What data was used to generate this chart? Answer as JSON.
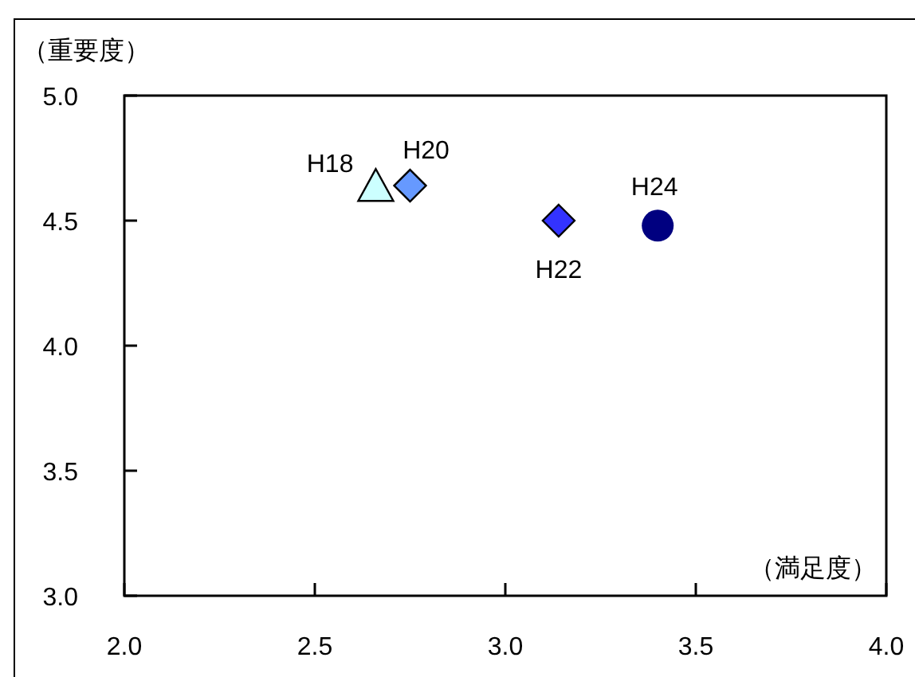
{
  "chart_data": {
    "type": "scatter",
    "xlabel": "（満足度）",
    "ylabel": "（重要度）",
    "xlim": [
      2.0,
      4.0
    ],
    "xticks": [
      {
        "value": 2,
        "label": "2.0"
      },
      {
        "value": 2.5,
        "label": "2.5"
      },
      {
        "value": 3,
        "label": "3.0"
      },
      {
        "value": 3.5,
        "label": "3.5"
      },
      {
        "value": 4,
        "label": "4.0"
      }
    ],
    "ylim": [
      3.0,
      5.0
    ],
    "yticks": [
      {
        "value": 3,
        "label": "3.0"
      },
      {
        "value": 3.5,
        "label": "3.5"
      },
      {
        "value": 4,
        "label": "4.0"
      },
      {
        "value": 4.5,
        "label": "4.5"
      },
      {
        "value": 5,
        "label": "5.0"
      }
    ],
    "series": [
      {
        "name": "H18",
        "color": "#ccffff",
        "marker": "triangle",
        "x": [
          2.66
        ],
        "values": [
          4.63
        ]
      },
      {
        "name": "H20",
        "color": "#6699ff",
        "marker": "diamond",
        "x": [
          2.75
        ],
        "values": [
          4.64
        ]
      },
      {
        "name": "H22",
        "color": "#3333ff",
        "marker": "diamond",
        "x": [
          3.14
        ],
        "values": [
          4.5
        ]
      },
      {
        "name": "H24",
        "color": "#000080",
        "marker": "circle",
        "x": [
          3.4
        ],
        "values": [
          4.48
        ]
      }
    ]
  }
}
